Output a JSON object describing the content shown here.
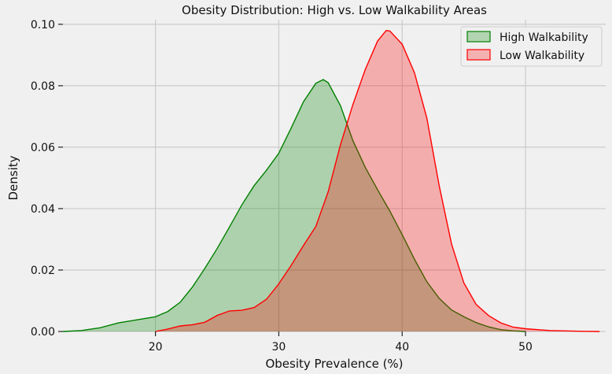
{
  "chart_data": {
    "type": "area",
    "title": "Obesity Distribution: High vs. Low Walkability Areas",
    "xlabel": "Obesity Prevalence (%)",
    "ylabel": "Density",
    "xlim": [
      12.5,
      56.5
    ],
    "ylim": [
      0,
      0.1015
    ],
    "x_ticks": [
      20,
      30,
      40,
      50
    ],
    "y_ticks": [
      0.0,
      0.02,
      0.04,
      0.06,
      0.08,
      0.1
    ],
    "y_tick_labels": [
      "0.00",
      "0.02",
      "0.04",
      "0.06",
      "0.08",
      "0.10"
    ],
    "grid": true,
    "legend_position": "top-right",
    "series": [
      {
        "name": "High Walkability",
        "color": "#008000",
        "fill": "#b3d4b1",
        "x": [
          12.5,
          14,
          15.5,
          17,
          18.5,
          20,
          21,
          22,
          23,
          24,
          25,
          26,
          27,
          28,
          29,
          30,
          31,
          32,
          33,
          33.6,
          34,
          35,
          36,
          37,
          38,
          39,
          40,
          41,
          42,
          43,
          44,
          45,
          46,
          47,
          48,
          49,
          50
        ],
        "y": [
          0.0,
          0.0003,
          0.0012,
          0.0028,
          0.0038,
          0.0048,
          0.0065,
          0.0095,
          0.0145,
          0.0205,
          0.027,
          0.034,
          0.0412,
          0.0475,
          0.0525,
          0.058,
          0.0662,
          0.0748,
          0.0808,
          0.082,
          0.081,
          0.0735,
          0.0622,
          0.0535,
          0.0462,
          0.0392,
          0.0315,
          0.0235,
          0.0162,
          0.0108,
          0.007,
          0.0048,
          0.0029,
          0.0015,
          0.0006,
          0.0002,
          0.0
        ]
      },
      {
        "name": "Low Walkability",
        "color": "#ff0000",
        "fill": "#f4b1b2",
        "x": [
          20,
          21,
          22,
          23,
          24,
          25,
          26,
          27,
          28,
          29,
          30,
          31,
          32,
          33,
          34,
          35,
          36,
          37,
          38,
          38.7,
          39,
          40,
          41,
          42,
          43,
          44,
          45,
          46,
          47,
          48,
          49,
          50,
          51,
          52,
          53,
          54,
          55,
          56
        ],
        "y": [
          0.0,
          0.0008,
          0.0018,
          0.0022,
          0.003,
          0.0052,
          0.0067,
          0.0069,
          0.0078,
          0.0105,
          0.0155,
          0.0215,
          0.028,
          0.0342,
          0.0455,
          0.0608,
          0.0738,
          0.0852,
          0.0945,
          0.098,
          0.0978,
          0.0935,
          0.0842,
          0.0695,
          0.0475,
          0.0285,
          0.0158,
          0.0088,
          0.0052,
          0.0028,
          0.0014,
          0.0009,
          0.0006,
          0.0003,
          0.0002,
          0.0001,
          5e-05,
          0.0
        ]
      }
    ]
  }
}
